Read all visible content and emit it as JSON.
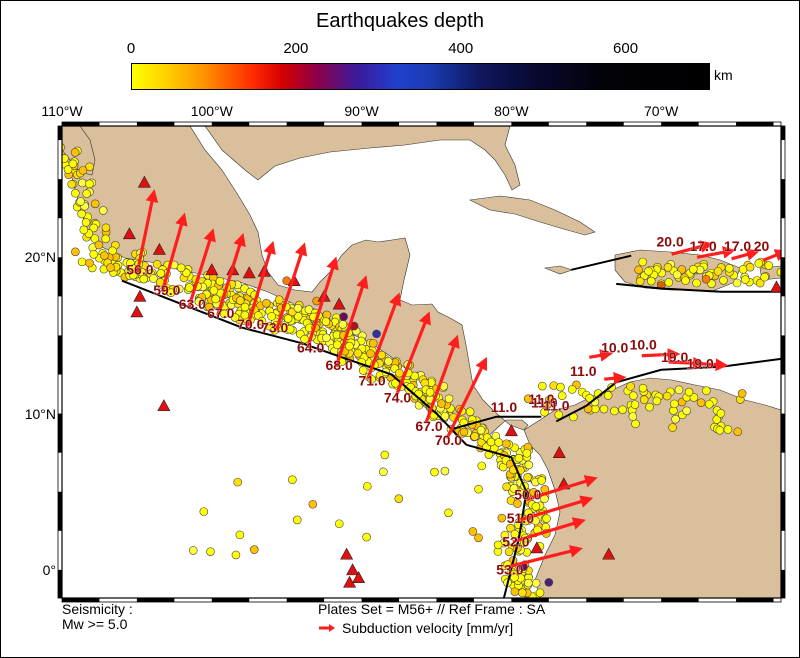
{
  "title": "Earthquakes depth",
  "colorbar": {
    "ticks": [
      "0",
      "200",
      "400",
      "600"
    ],
    "tick_values": [
      0,
      200,
      400,
      600
    ],
    "min": 0,
    "max": 700,
    "unit": "km",
    "colors": [
      "#ffff00",
      "#ff8c00",
      "#d40000",
      "#3a1a9a",
      "#2040d0",
      "#101860",
      "#000000"
    ]
  },
  "map": {
    "lon_range": [
      -110,
      -62
    ],
    "lat_range": [
      -1.8,
      28.4
    ],
    "lon_labels": [
      {
        "lon": -110,
        "text": "110°W"
      },
      {
        "lon": -100,
        "text": "100°W"
      },
      {
        "lon": -90,
        "text": "90°W"
      },
      {
        "lon": -80,
        "text": "80°W"
      },
      {
        "lon": -70,
        "text": "70°W"
      }
    ],
    "lat_labels": [
      {
        "lat": 20,
        "text": "20°N"
      },
      {
        "lat": 10,
        "text": "10°N"
      },
      {
        "lat": 0,
        "text": "0°"
      }
    ],
    "colors": {
      "land": "#d9bf9b",
      "sea": "#ffffff",
      "arrow": "#ff1e1e",
      "label": "#8c0a0a",
      "volcano": "#e01010",
      "quake": "#ffff00"
    },
    "velocity_labels": [
      {
        "lon": -104.8,
        "lat": 18.9,
        "text": "56.0"
      },
      {
        "lon": -103.0,
        "lat": 17.6,
        "text": "59.0"
      },
      {
        "lon": -101.3,
        "lat": 16.7,
        "text": "63.0"
      },
      {
        "lon": -99.4,
        "lat": 16.1,
        "text": "67.0"
      },
      {
        "lon": -97.4,
        "lat": 15.4,
        "text": "70.0"
      },
      {
        "lon": -95.8,
        "lat": 15.2,
        "text": "73.0"
      },
      {
        "lon": -93.4,
        "lat": 13.9,
        "text": "64.0"
      },
      {
        "lon": -91.5,
        "lat": 12.8,
        "text": "68.0"
      },
      {
        "lon": -89.3,
        "lat": 11.8,
        "text": "71.0"
      },
      {
        "lon": -87.6,
        "lat": 10.7,
        "text": "74.0"
      },
      {
        "lon": -85.5,
        "lat": 8.9,
        "text": "67.0"
      },
      {
        "lon": -84.2,
        "lat": 8.0,
        "text": "70.0"
      },
      {
        "lon": -80.5,
        "lat": 10.1,
        "text": "11.0"
      },
      {
        "lon": -78.0,
        "lat": 10.6,
        "text": "11.0"
      },
      {
        "lon": -77.8,
        "lat": 10.4,
        "text": "11.0"
      },
      {
        "lon": -77.0,
        "lat": 10.2,
        "text": "11.0"
      },
      {
        "lon": -75.2,
        "lat": 12.4,
        "text": "11.0"
      },
      {
        "lon": -73.1,
        "lat": 13.9,
        "text": "10.0"
      },
      {
        "lon": -71.2,
        "lat": 14.1,
        "text": "10.0"
      },
      {
        "lon": -69.1,
        "lat": 13.3,
        "text": "19.0"
      },
      {
        "lon": -67.4,
        "lat": 12.9,
        "text": "19.0"
      },
      {
        "lon": -69.4,
        "lat": 20.7,
        "text": "20.0"
      },
      {
        "lon": -67.2,
        "lat": 20.4,
        "text": "17.0"
      },
      {
        "lon": -64.9,
        "lat": 20.4,
        "text": "17.0"
      },
      {
        "lon": -63.3,
        "lat": 20.4,
        "text": "20"
      },
      {
        "lon": -78.9,
        "lat": 4.5,
        "text": "50.0"
      },
      {
        "lon": -79.4,
        "lat": 3.0,
        "text": "51.0"
      },
      {
        "lon": -79.7,
        "lat": 1.5,
        "text": "52.0"
      },
      {
        "lon": -80.1,
        "lat": -0.3,
        "text": "53.0"
      }
    ]
  },
  "legend": {
    "seismicity_line1": "Seismicity :",
    "seismicity_line2": "Mw >= 5.0",
    "plates": "Plates Set = M56+ // Ref Frame : SA",
    "subduction": "Subduction velocity [mm/yr]"
  }
}
